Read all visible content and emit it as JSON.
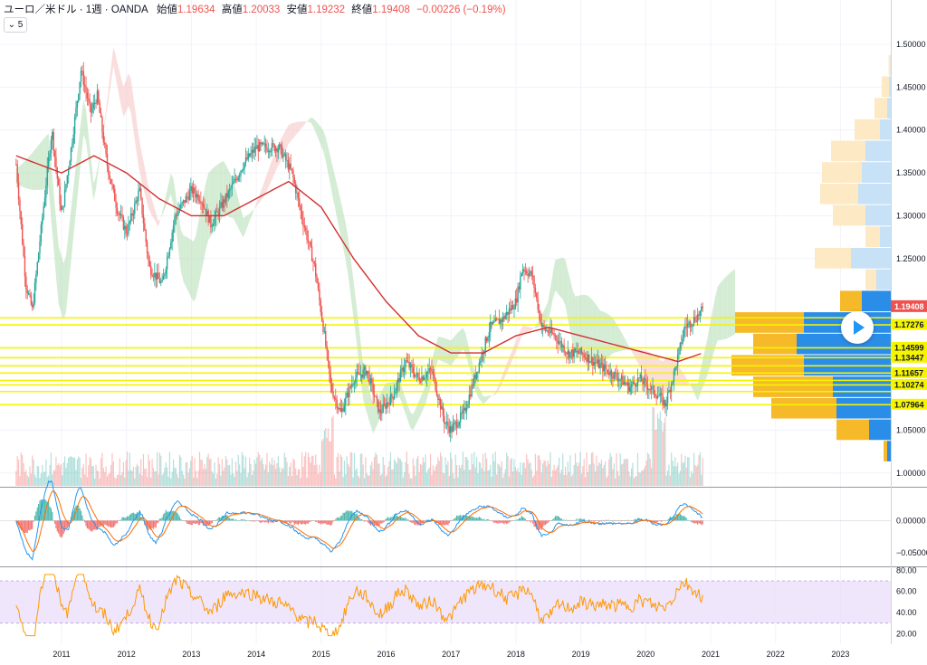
{
  "header": {
    "symbol": "ユーロ／米ドル · 1週 · OANDA",
    "open_label": "始値",
    "open_value": "1.19634",
    "high_label": "高値",
    "high_value": "1.20033",
    "low_label": "安値",
    "low_value": "1.19232",
    "close_label": "終値",
    "close_value": "1.19408",
    "change_value": "−0.00226 (−0.19%)"
  },
  "indicator_toggle": {
    "label": "5"
  },
  "colors": {
    "up": "#26a69a",
    "down": "#ef5350",
    "ma": "#d32f2f",
    "kumo_bull": "#b7e0b7",
    "kumo_bear": "#f7c6c6",
    "vp_blue": "#2a8de8",
    "vp_orange": "#f5b92a",
    "level_line": "#f5f500",
    "macd_line": "#2196f3",
    "signal_line": "#ff6d00",
    "rsi_line": "#ff9800",
    "rsi_band": "#e9dbfb"
  },
  "chart_data": [
    {
      "type": "candlestick",
      "pane": "price",
      "symbol": "EUR/USD",
      "timeframe": "1W",
      "x_ticks": [
        "2011",
        "2012",
        "2013",
        "2014",
        "2015",
        "2016",
        "2017",
        "2018",
        "2019",
        "2020",
        "2021",
        "2022",
        "2023"
      ],
      "y_ticks": [
        "1.50000",
        "1.45000",
        "1.40000",
        "1.35000",
        "1.30000",
        "1.25000",
        "1.05000",
        "1.00000"
      ],
      "ylim": [
        0.985,
        1.52
      ],
      "last_price": "1.19408",
      "level_labels": [
        "1.17276",
        "1.14599",
        "1.13447",
        "1.11657",
        "1.10274",
        "1.07964"
      ],
      "anchors": [
        [
          2010.3,
          1.36
        ],
        [
          2010.45,
          1.22
        ],
        [
          2010.55,
          1.19
        ],
        [
          2010.85,
          1.4
        ],
        [
          2011.0,
          1.3
        ],
        [
          2011.15,
          1.38
        ],
        [
          2011.3,
          1.47
        ],
        [
          2011.45,
          1.42
        ],
        [
          2011.55,
          1.44
        ],
        [
          2011.7,
          1.36
        ],
        [
          2011.85,
          1.31
        ],
        [
          2012.0,
          1.28
        ],
        [
          2012.2,
          1.33
        ],
        [
          2012.35,
          1.24
        ],
        [
          2012.55,
          1.22
        ],
        [
          2012.75,
          1.3
        ],
        [
          2013.0,
          1.33
        ],
        [
          2013.15,
          1.32
        ],
        [
          2013.3,
          1.29
        ],
        [
          2013.45,
          1.31
        ],
        [
          2013.6,
          1.33
        ],
        [
          2013.8,
          1.36
        ],
        [
          2014.0,
          1.38
        ],
        [
          2014.15,
          1.38
        ],
        [
          2014.35,
          1.38
        ],
        [
          2014.55,
          1.35
        ],
        [
          2014.7,
          1.3
        ],
        [
          2014.9,
          1.24
        ],
        [
          2015.05,
          1.16
        ],
        [
          2015.15,
          1.1
        ],
        [
          2015.3,
          1.07
        ],
        [
          2015.5,
          1.11
        ],
        [
          2015.7,
          1.12
        ],
        [
          2015.9,
          1.07
        ],
        [
          2016.1,
          1.09
        ],
        [
          2016.3,
          1.13
        ],
        [
          2016.5,
          1.11
        ],
        [
          2016.7,
          1.12
        ],
        [
          2016.9,
          1.06
        ],
        [
          2017.0,
          1.05
        ],
        [
          2017.2,
          1.07
        ],
        [
          2017.4,
          1.12
        ],
        [
          2017.6,
          1.17
        ],
        [
          2017.8,
          1.18
        ],
        [
          2018.0,
          1.2
        ],
        [
          2018.1,
          1.24
        ],
        [
          2018.25,
          1.23
        ],
        [
          2018.4,
          1.17
        ],
        [
          2018.6,
          1.16
        ],
        [
          2018.8,
          1.14
        ],
        [
          2019.0,
          1.14
        ],
        [
          2019.2,
          1.13
        ],
        [
          2019.4,
          1.12
        ],
        [
          2019.6,
          1.11
        ],
        [
          2019.75,
          1.1
        ],
        [
          2019.9,
          1.11
        ],
        [
          2020.05,
          1.1
        ],
        [
          2020.2,
          1.09
        ],
        [
          2020.3,
          1.08
        ],
        [
          2020.45,
          1.12
        ],
        [
          2020.6,
          1.17
        ],
        [
          2020.75,
          1.18
        ],
        [
          2020.88,
          1.19
        ]
      ],
      "ma_anchors": [
        [
          2010.3,
          1.37
        ],
        [
          2011.0,
          1.35
        ],
        [
          2011.5,
          1.37
        ],
        [
          2012.0,
          1.35
        ],
        [
          2012.5,
          1.32
        ],
        [
          2013.0,
          1.3
        ],
        [
          2013.5,
          1.3
        ],
        [
          2014.0,
          1.32
        ],
        [
          2014.5,
          1.34
        ],
        [
          2015.0,
          1.31
        ],
        [
          2015.5,
          1.25
        ],
        [
          2016.0,
          1.2
        ],
        [
          2016.5,
          1.16
        ],
        [
          2017.0,
          1.14
        ],
        [
          2017.5,
          1.14
        ],
        [
          2018.0,
          1.16
        ],
        [
          2018.5,
          1.17
        ],
        [
          2019.0,
          1.16
        ],
        [
          2019.5,
          1.15
        ],
        [
          2020.0,
          1.14
        ],
        [
          2020.5,
          1.13
        ],
        [
          2020.88,
          1.14
        ]
      ],
      "volume_profile": [
        [
          1.475,
          0.05,
          0.01
        ],
        [
          1.45,
          0.2,
          0.05
        ],
        [
          1.425,
          0.35,
          0.1
        ],
        [
          1.4,
          0.7,
          0.3
        ],
        [
          1.375,
          0.95,
          0.7
        ],
        [
          1.35,
          1.1,
          0.8
        ],
        [
          1.325,
          1.05,
          0.9
        ],
        [
          1.3,
          0.9,
          0.7
        ],
        [
          1.275,
          0.4,
          0.3
        ],
        [
          1.25,
          1.0,
          1.1
        ],
        [
          1.225,
          0.3,
          0.4
        ],
        [
          1.2,
          0.6,
          0.8
        ],
        [
          1.175,
          1.9,
          2.4
        ],
        [
          1.15,
          1.2,
          2.6
        ],
        [
          1.125,
          2.0,
          2.4
        ],
        [
          1.1,
          2.2,
          1.6
        ],
        [
          1.075,
          1.8,
          1.5
        ],
        [
          1.05,
          0.9,
          0.6
        ],
        [
          1.025,
          0.1,
          0.1
        ]
      ]
    },
    {
      "type": "macd",
      "pane": "macd",
      "y_ticks": [
        "0.00000",
        "−0.05000"
      ],
      "ylim": [
        -0.07,
        0.05
      ]
    },
    {
      "type": "rsi",
      "pane": "rsi",
      "y_ticks": [
        "80.00",
        "60.00",
        "40.00",
        "20.00"
      ],
      "ylim": [
        10,
        82
      ],
      "band": [
        30,
        70
      ]
    }
  ]
}
